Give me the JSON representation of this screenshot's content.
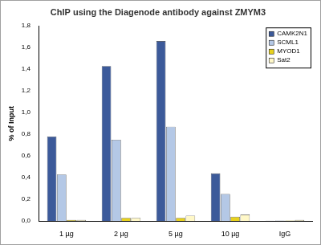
{
  "chart_data": {
    "type": "bar",
    "title": "ChIP using the Diagenode antibody against ZMYM3",
    "y_label": "% of Input",
    "categories": [
      "1 µg",
      "2 µg",
      "5 µg",
      "10 µg",
      "IgG"
    ],
    "series": [
      {
        "name": "CAMK2N1",
        "color": "#3c5a9a",
        "values": [
          0.78,
          1.43,
          1.66,
          0.44,
          0.003
        ]
      },
      {
        "name": "SCML1",
        "color": "#b4c8e6",
        "values": [
          0.43,
          0.75,
          0.87,
          0.25,
          0.005
        ]
      },
      {
        "name": "MYOD1",
        "color": "#e8d21e",
        "values": [
          0.01,
          0.03,
          0.03,
          0.04,
          0.005
        ]
      },
      {
        "name": "Sat2",
        "color": "#fff8c8",
        "values": [
          0.01,
          0.03,
          0.05,
          0.06,
          0.01
        ]
      }
    ],
    "ylim": [
      0,
      1.8
    ],
    "yticks": [
      {
        "value": 0,
        "label": "0,0"
      },
      {
        "value": 0.2,
        "label": "0,2"
      },
      {
        "value": 0.4,
        "label": "0,4"
      },
      {
        "value": 0.6,
        "label": "0,6"
      },
      {
        "value": 0.8,
        "label": "0,8"
      },
      {
        "value": 1.0,
        "label": "1,0"
      },
      {
        "value": 1.2,
        "label": "1,2"
      },
      {
        "value": 1.4,
        "label": "1,4"
      },
      {
        "value": 1.6,
        "label": "1,6"
      },
      {
        "value": 1.8,
        "label": "1,8"
      }
    ],
    "grid": false,
    "legend": "upper right"
  }
}
